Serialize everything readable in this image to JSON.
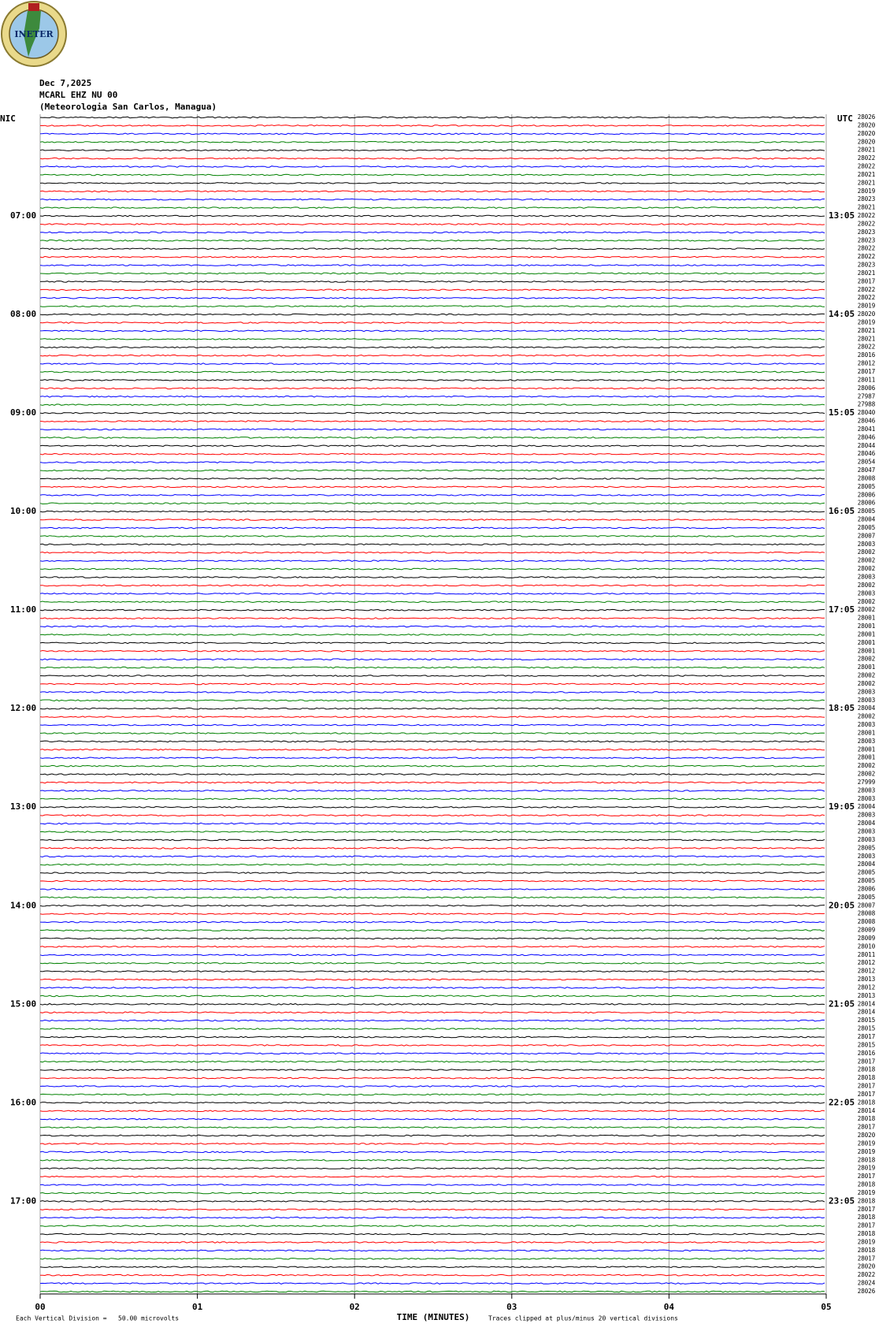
{
  "chart_data": {
    "type": "helicorder",
    "logo": "INETER",
    "date": "Dec 7,2025",
    "station": "MCARL EHZ NU 00",
    "location": "(Meteorologia San Carlos, Managua)",
    "left_zone": "NIC",
    "right_zone": "UTC",
    "x_label": "TIME (MINUTES)",
    "scale_note": "Each Vertical Division =   50.00 microvolts",
    "clip_note": "Traces clipped at plus/minus 20 vertical divisions",
    "xlim": [
      0,
      5
    ],
    "xticks": [
      {
        "value": 0,
        "label": "00"
      },
      {
        "value": 1,
        "label": "01"
      },
      {
        "value": 2,
        "label": "02"
      },
      {
        "value": 3,
        "label": "03"
      },
      {
        "value": 4,
        "label": "04"
      },
      {
        "value": 5,
        "label": "05"
      }
    ],
    "grid": true,
    "trace_colors": [
      "#000000",
      "#ff0000",
      "#0000ff",
      "#008000"
    ],
    "left_hour_labels": [
      "07:00",
      "08:00",
      "09:00",
      "10:00",
      "11:00",
      "12:00",
      "13:00",
      "14:00",
      "15:00",
      "16:00",
      "17:00"
    ],
    "right_hour_labels": [
      "13:05",
      "14:05",
      "15:05",
      "16:05",
      "17:05",
      "18:05",
      "19:05",
      "20:05",
      "21:05",
      "22:05",
      "23:05"
    ],
    "row_values": [
      28026,
      28020,
      28020,
      28020,
      28021,
      28022,
      28022,
      28021,
      28021,
      28019,
      28023,
      28021,
      28022,
      28022,
      28023,
      28023,
      28022,
      28022,
      28023,
      28021,
      28017,
      28022,
      28022,
      28019,
      28020,
      28019,
      28021,
      28021,
      28022,
      28016,
      28012,
      28017,
      28011,
      28006,
      27987,
      27988,
      28040,
      28046,
      28041,
      28046,
      28044,
      28046,
      28054,
      28047,
      28008,
      28005,
      28006,
      28006,
      28005,
      28004,
      28005,
      28007,
      28003,
      28002,
      28002,
      28002,
      28003,
      28002,
      28003,
      28002,
      28002,
      28001,
      28001,
      28001,
      28001,
      28001,
      28002,
      28001,
      28002,
      28002,
      28003,
      28003,
      28004,
      28002,
      28003,
      28001,
      28003,
      28001,
      28001,
      28002,
      28002,
      27999,
      28003,
      28003,
      28004,
      28003,
      28004,
      28003,
      28003,
      28005,
      28003,
      28004,
      28005,
      28005,
      28006,
      28005,
      28007,
      28008,
      28008,
      28009,
      28009,
      28010,
      28011,
      28012,
      28012,
      28013,
      28012,
      28013,
      28014,
      28014,
      28015,
      28015,
      28017,
      28015,
      28016,
      28017,
      28018,
      28018,
      28017,
      28017,
      28018,
      28014,
      28018,
      28017,
      28020,
      28019,
      28019,
      28018,
      28019,
      28017,
      28018,
      28019,
      28018,
      28017,
      28018,
      28017,
      28018,
      28019,
      28018,
      28017,
      28020,
      28022,
      28024,
      28026
    ]
  }
}
